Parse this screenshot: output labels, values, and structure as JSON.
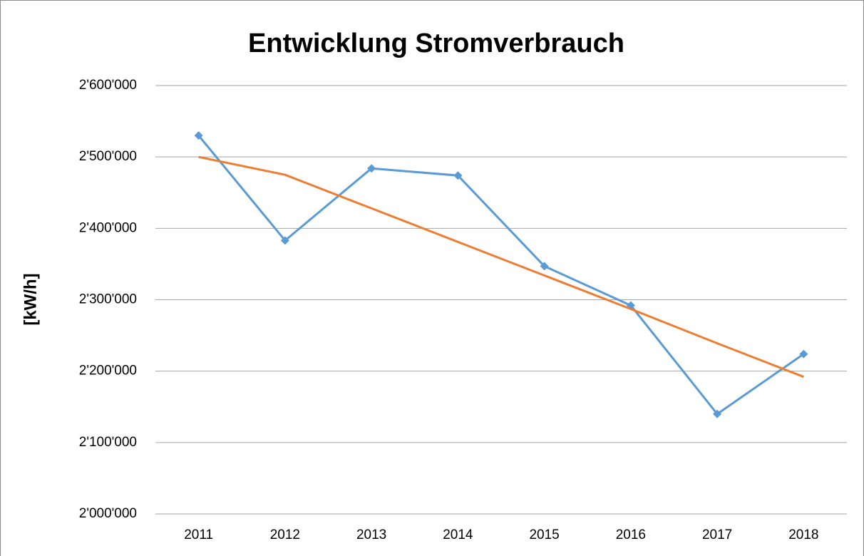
{
  "chart_data": {
    "type": "line",
    "title": "Entwicklung Stromverbrauch",
    "y_label": "[kW/h]",
    "categories": [
      "2011",
      "2012",
      "2013",
      "2014",
      "2015",
      "2016",
      "2017",
      "2018"
    ],
    "series": [
      {
        "color": "#5b9bd5",
        "marker": "diamond",
        "values": [
          2530000,
          2383000,
          2484000,
          2474000,
          2347000,
          2292000,
          2140000,
          2224000
        ]
      },
      {
        "color": "#ed7d31",
        "values": [
          2500000,
          2475000,
          2428000,
          2381000,
          2334000,
          2287000,
          2239000,
          2192000
        ]
      }
    ],
    "ylim": [
      2000000,
      2600000
    ],
    "yticks": [
      {
        "value": 2000000,
        "label": "2'000'000"
      },
      {
        "value": 2100000,
        "label": "2'100'000"
      },
      {
        "value": 2200000,
        "label": "2'200'000"
      },
      {
        "value": 2300000,
        "label": "2'300'000"
      },
      {
        "value": 2400000,
        "label": "2'400'000"
      },
      {
        "value": 2500000,
        "label": "2'500'000"
      },
      {
        "value": 2600000,
        "label": "2'600'000"
      }
    ],
    "grid": true
  }
}
